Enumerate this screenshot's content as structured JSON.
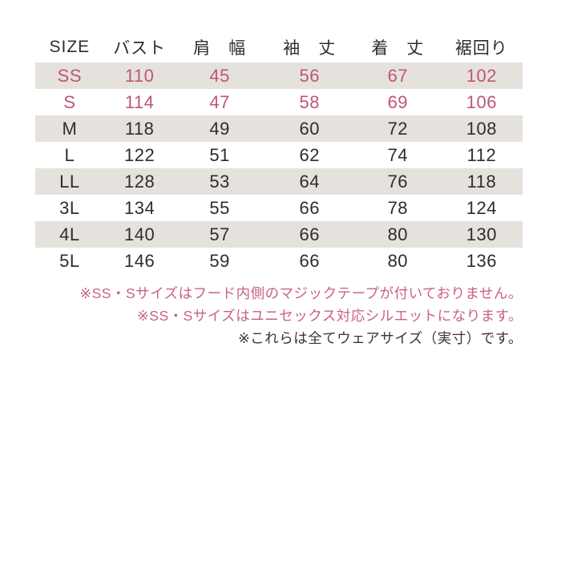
{
  "chart_data": {
    "type": "table",
    "columns": [
      "SIZE",
      "バスト",
      "肩　幅",
      "袖　丈",
      "着　丈",
      "裾回り"
    ],
    "rows": [
      [
        "SS",
        110,
        45,
        56,
        67,
        102
      ],
      [
        "S",
        114,
        47,
        58,
        69,
        106
      ],
      [
        "M",
        118,
        49,
        60,
        72,
        108
      ],
      [
        "L",
        122,
        51,
        62,
        74,
        112
      ],
      [
        "LL",
        128,
        53,
        64,
        76,
        118
      ],
      [
        "3L",
        134,
        55,
        66,
        78,
        124
      ],
      [
        "4L",
        140,
        57,
        66,
        80,
        130
      ],
      [
        "5L",
        146,
        59,
        66,
        80,
        136
      ]
    ],
    "accent_rows": [
      "SS",
      "S"
    ],
    "shaded_rows": [
      "SS",
      "M",
      "LL",
      "4L"
    ],
    "layout_hints": {
      "shading": "alternating rows starting with first data row",
      "accent_meaning": "SS and S rows rendered in pink"
    }
  },
  "notes": [
    "※SS・Sサイズはフード内側のマジックテープが付いておりません。",
    "※SS・Sサイズはユニセックス対応シルエットになります。",
    "※これらは全てウェアサイズ（実寸）です。"
  ],
  "colors": {
    "accent_pink": "#c05672",
    "note_pink": "#c9637e",
    "row_shade": "#e5e2dd",
    "text_dark": "#2f2d2b",
    "note_dark": "#3e352d",
    "background": "#ffffff"
  }
}
